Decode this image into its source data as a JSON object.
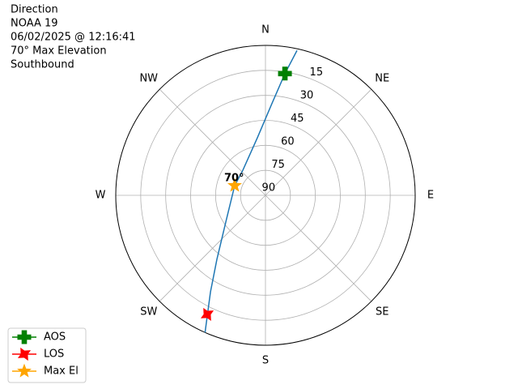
{
  "chart_data": {
    "type": "polar",
    "title": [
      "Direction",
      "NOAA 19",
      "06/02/2025 @ 12:16:41",
      "70° Max Elevation",
      "Southbound"
    ],
    "xticks": [
      {
        "value": 0,
        "label": "N"
      },
      {
        "value": 45,
        "label": "NE"
      },
      {
        "value": 90,
        "label": "E"
      },
      {
        "value": 135,
        "label": "SE"
      },
      {
        "value": 180,
        "label": "S"
      },
      {
        "value": 225,
        "label": "SW"
      },
      {
        "value": 270,
        "label": "W"
      },
      {
        "value": 315,
        "label": "NW"
      }
    ],
    "ylim": [
      90,
      0
    ],
    "yticks": [
      15,
      30,
      45,
      60,
      75,
      90
    ],
    "grid": true,
    "legend": "lower left",
    "series": [
      {
        "color": "#1f77b4",
        "marker": "line",
        "x": [
          12.3,
          9.1,
          3.6,
          352,
          317.9,
          287.5,
          238.9,
          217.2,
          209.7,
          203.8
        ],
        "values": [
          1,
          16,
          35.9,
          55.1,
          69.7,
          70.6,
          62.7,
          41.7,
          23.3,
          0
        ]
      },
      {
        "name": "AOS",
        "color": "#008000",
        "marker": "plus",
        "x": [
          9.1
        ],
        "values": [
          16
        ]
      },
      {
        "name": "LOS",
        "color": "#ff0000",
        "marker": "x",
        "x": [
          206.1
        ],
        "values": [
          10.4
        ]
      },
      {
        "name": "Max El",
        "color": "#ffa500",
        "marker": "star",
        "x": [
          287.5
        ],
        "values": [
          70.6
        ]
      }
    ],
    "annotation": "70°"
  }
}
